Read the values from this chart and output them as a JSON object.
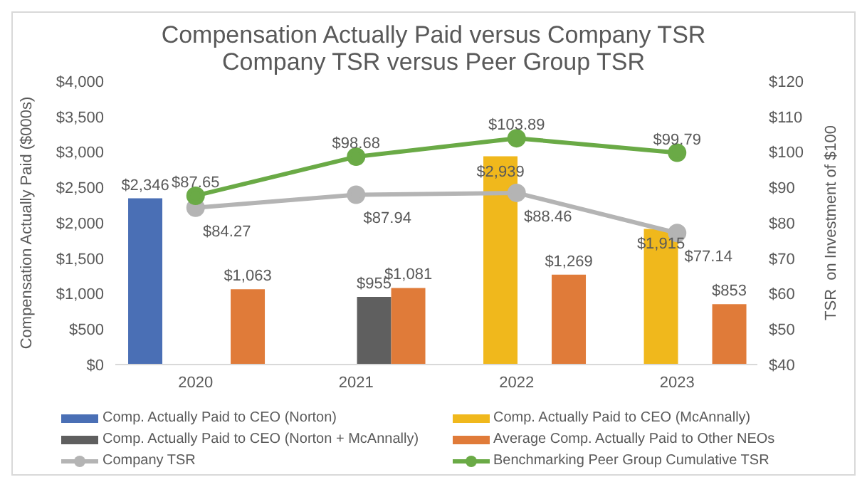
{
  "chart_data": {
    "type": "bar",
    "title": "Compensation Actually Paid versus Company TSR",
    "subtitle": "Company TSR versus Peer Group TSR",
    "ylabel": "Compensation Actually Paid ($000s)",
    "y2label": "TSR  on Investment of $100",
    "categories": [
      "2020",
      "2021",
      "2022",
      "2023"
    ],
    "series": [
      {
        "name": "Comp. Actually Paid to CEO (Norton)",
        "color": "#4a6fb5",
        "values": [
          2346,
          null,
          null,
          null
        ],
        "value_labels": [
          "$2,346",
          null,
          null,
          null
        ]
      },
      {
        "name": "Comp. Actually Paid to CEO (McAnnally)",
        "color": "#f0b81c",
        "values": [
          null,
          null,
          2939,
          1915
        ],
        "value_labels": [
          null,
          null,
          "$2,939",
          "$1,915"
        ]
      },
      {
        "name": "Comp. Actually Paid to CEO (Norton + McAnnally)",
        "color": "#5f5f5f",
        "values": [
          null,
          955,
          null,
          null
        ],
        "value_labels": [
          null,
          "$955",
          null,
          null
        ]
      },
      {
        "name": "Average Comp. Actually Paid to Other NEOs",
        "color": "#e07b39",
        "values": [
          1063,
          1081,
          1269,
          853
        ],
        "value_labels": [
          "$1,063",
          "$1,081",
          "$1,269",
          "$853"
        ]
      },
      {
        "name": "Company TSR",
        "type": "line",
        "axis": "y2",
        "color": "#b4b4b4",
        "values": [
          84.27,
          87.94,
          88.46,
          77.14
        ],
        "value_labels": [
          "$84.27",
          "$87.94",
          "$88.46",
          "$77.14"
        ]
      },
      {
        "name": "Benchmarking Peer Group Cumulative TSR",
        "type": "line",
        "axis": "y2",
        "color": "#6aaa46",
        "values": [
          87.65,
          98.68,
          103.89,
          99.79
        ],
        "value_labels": [
          "$87.65",
          "$98.68",
          "$103.89",
          "$99.79"
        ]
      }
    ],
    "ylim": [
      0,
      4000
    ],
    "yticks": [
      {
        "value": 0,
        "label": "$0"
      },
      {
        "value": 500,
        "label": "$500"
      },
      {
        "value": 1000,
        "label": "$1,000"
      },
      {
        "value": 1500,
        "label": "$1,500"
      },
      {
        "value": 2000,
        "label": "$2,000"
      },
      {
        "value": 2500,
        "label": "$2,500"
      },
      {
        "value": 3000,
        "label": "$3,000"
      },
      {
        "value": 3500,
        "label": "$3,500"
      },
      {
        "value": 4000,
        "label": "$4,000"
      }
    ],
    "y2lim": [
      40,
      120
    ],
    "y2ticks": [
      {
        "value": 40,
        "label": "$40"
      },
      {
        "value": 50,
        "label": "$50"
      },
      {
        "value": 60,
        "label": "$60"
      },
      {
        "value": 70,
        "label": "$70"
      },
      {
        "value": 80,
        "label": "$80"
      },
      {
        "value": 90,
        "label": "$90"
      },
      {
        "value": 100,
        "label": "$100"
      },
      {
        "value": 110,
        "label": "$110"
      },
      {
        "value": 120,
        "label": "$120"
      }
    ],
    "grid": false,
    "legend": "bottom",
    "marker": "circle",
    "line_style": "solid"
  }
}
